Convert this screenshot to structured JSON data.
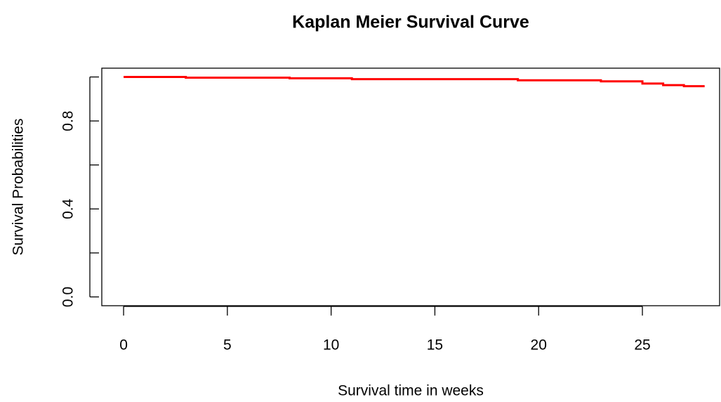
{
  "chart_data": {
    "type": "line",
    "step": "post",
    "title": "Kaplan Meier Survival Curve",
    "x_label": "Survival time in weeks",
    "y_label": "Survival Probabilities",
    "x": [
      0,
      3,
      8,
      11,
      19,
      23,
      25,
      26,
      27,
      28
    ],
    "series": [
      {
        "color": "#ff0000",
        "values": [
          1.0,
          0.997,
          0.994,
          0.99,
          0.985,
          0.98,
          0.97,
          0.963,
          0.958,
          0.958
        ]
      }
    ],
    "xlim": [
      -1.05,
      28.72
    ],
    "ylim": [
      -0.04,
      1.04
    ],
    "xticks": [
      0,
      5,
      10,
      15,
      20,
      25
    ],
    "yticks": [
      {
        "value": 0,
        "label": "0.0"
      },
      {
        "value": 0.2,
        "label": null
      },
      {
        "value": 0.4,
        "label": "0.4"
      },
      {
        "value": 0.6,
        "label": null
      },
      {
        "value": 0.8,
        "label": "0.8"
      },
      {
        "value": 1.0,
        "label": null
      }
    ]
  }
}
